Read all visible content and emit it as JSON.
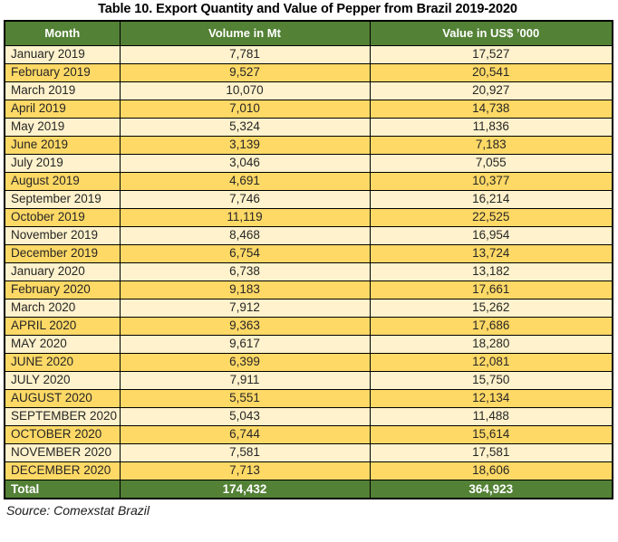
{
  "title": "Table 10. Export Quantity and Value of Pepper from Brazil 2019-2020",
  "source": "Source: Comexstat Brazil",
  "colors": {
    "header_green": "#538135",
    "row_cream": "#FFF2CC",
    "row_gold": "#FFD966",
    "border": "#000000",
    "header_text": "#FFFFFF"
  },
  "table": {
    "columns": [
      "Month",
      "Volume in Mt",
      "Value in US$ ’000"
    ],
    "rows": [
      {
        "month": "January 2019",
        "volume": "7,781",
        "value": "17,527"
      },
      {
        "month": "February 2019",
        "volume": "9,527",
        "value": "20,541"
      },
      {
        "month": "March 2019",
        "volume": "10,070",
        "value": "20,927"
      },
      {
        "month": "April 2019",
        "volume": "7,010",
        "value": "14,738"
      },
      {
        "month": "May 2019",
        "volume": "5,324",
        "value": "11,836"
      },
      {
        "month": "June 2019",
        "volume": "3,139",
        "value": "7,183"
      },
      {
        "month": "July 2019",
        "volume": "3,046",
        "value": "7,055"
      },
      {
        "month": "August 2019",
        "volume": "4,691",
        "value": "10,377"
      },
      {
        "month": "September 2019",
        "volume": "7,746",
        "value": "16,214"
      },
      {
        "month": "October 2019",
        "volume": "11,119",
        "value": "22,525"
      },
      {
        "month": "November 2019",
        "volume": "8,468",
        "value": "16,954"
      },
      {
        "month": "December 2019",
        "volume": "6,754",
        "value": "13,724"
      },
      {
        "month": "January 2020",
        "volume": "6,738",
        "value": "13,182"
      },
      {
        "month": "February 2020",
        "volume": "9,183",
        "value": "17,661"
      },
      {
        "month": "March 2020",
        "volume": "7,912",
        "value": "15,262"
      },
      {
        "month": "APRIL 2020",
        "volume": "9,363",
        "value": "17,686"
      },
      {
        "month": "MAY 2020",
        "volume": "9,617",
        "value": "18,280"
      },
      {
        "month": "JUNE 2020",
        "volume": "6,399",
        "value": "12,081"
      },
      {
        "month": "JULY 2020",
        "volume": "7,911",
        "value": "15,750"
      },
      {
        "month": "AUGUST 2020",
        "volume": "5,551",
        "value": "12,134"
      },
      {
        "month": "SEPTEMBER 2020",
        "volume": "5,043",
        "value": "11,488"
      },
      {
        "month": "OCTOBER 2020",
        "volume": "6,744",
        "value": "15,614"
      },
      {
        "month": "NOVEMBER 2020",
        "volume": "7,581",
        "value": "17,581"
      },
      {
        "month": "DECEMBER 2020",
        "volume": "7,713",
        "value": "18,606"
      }
    ],
    "total": {
      "label": "Total",
      "volume": "174,432",
      "value": "364,923"
    }
  },
  "chart_data": {
    "type": "table",
    "title": "Table 10. Export Quantity and Value of Pepper from Brazil 2019-2020",
    "categories": [
      "January 2019",
      "February 2019",
      "March 2019",
      "April 2019",
      "May 2019",
      "June 2019",
      "July 2019",
      "August 2019",
      "September 2019",
      "October 2019",
      "November 2019",
      "December 2019",
      "January 2020",
      "February 2020",
      "March 2020",
      "APRIL 2020",
      "MAY 2020",
      "JUNE 2020",
      "JULY 2020",
      "AUGUST 2020",
      "SEPTEMBER 2020",
      "OCTOBER 2020",
      "NOVEMBER 2020",
      "DECEMBER 2020"
    ],
    "series": [
      {
        "name": "Volume in Mt",
        "values": [
          7781,
          9527,
          10070,
          7010,
          5324,
          3139,
          3046,
          4691,
          7746,
          11119,
          8468,
          6754,
          6738,
          9183,
          7912,
          9363,
          9617,
          6399,
          7911,
          5551,
          5043,
          6744,
          7581,
          7713
        ],
        "total": 174432
      },
      {
        "name": "Value in US$ ’000",
        "values": [
          17527,
          20541,
          20927,
          14738,
          11836,
          7183,
          7055,
          10377,
          16214,
          22525,
          16954,
          13724,
          13182,
          17661,
          15262,
          17686,
          18280,
          12081,
          15750,
          12134,
          11488,
          15614,
          17581,
          18606
        ],
        "total": 364923
      }
    ],
    "annotations": [
      "Source: Comexstat Brazil"
    ]
  }
}
